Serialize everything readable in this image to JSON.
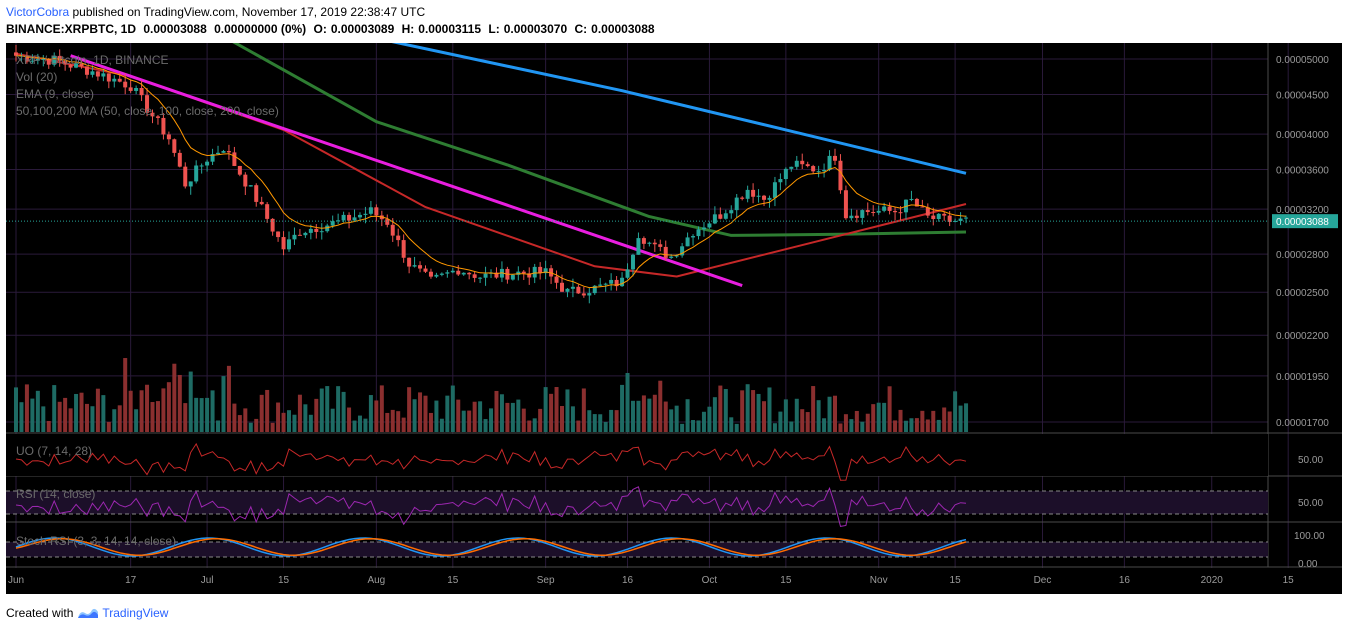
{
  "header": {
    "author": "VictorCobra",
    "published": "published on TradingView.com, November 17, 2019 22:38:47 UTC",
    "symbol": "BINANCE:XRPBTC, 1D",
    "last": "0.00003088",
    "change": "0.00000000 (0%)",
    "open_label": "O:",
    "open": "0.00003089",
    "high_label": "H:",
    "high": "0.00003115",
    "low_label": "L:",
    "low": "0.00003070",
    "close_label": "C:",
    "close": "0.00003088"
  },
  "legend": {
    "main": "XRP / Bitcoin, 1D, BINANCE",
    "vol": "Vol (20)",
    "ema": "EMA (9, close)",
    "ma": "50,100,200 MA (50, close, 100, close, 200, close)",
    "uo": "UO (7, 14, 28)",
    "rsi": "RSI (14, close)",
    "stoch": "Stoch RSI (3, 3, 14, 14, close)"
  },
  "price_axis": {
    "ticks": [
      "0.00005000",
      "0.00004500",
      "0.00004000",
      "0.00003600",
      "0.00003200",
      "0.00002800",
      "0.00002500",
      "0.00002200",
      "0.00001950",
      "0.00001700"
    ],
    "current_price": "0.00003088"
  },
  "oscillator_axes": {
    "uo_tick": "50.00",
    "rsi_tick": "50.00",
    "stoch_ticks": [
      "100.00",
      "0.00"
    ]
  },
  "time_axis": [
    "Jun",
    "17",
    "Jul",
    "15",
    "Aug",
    "15",
    "Sep",
    "16",
    "Oct",
    "15",
    "Nov",
    "15",
    "Dec",
    "16",
    "2020",
    "15"
  ],
  "footer": {
    "created_with": "Created with",
    "brand": "TradingView"
  },
  "colors": {
    "background": "#000000",
    "up_candle": "#26a69a",
    "down_candle": "#ef5350",
    "ema": "#ff9800",
    "ma50": "#c62828",
    "ma100": "#2e7d32",
    "ma200": "#2196f3",
    "trendline": "#e91ee0",
    "current_price_line": "#26a69a",
    "oscillator_line": "#c62828",
    "rsi_line": "#9c27b0",
    "stoch_k": "#2196f3",
    "stoch_d": "#ff6d00",
    "grid": "#2a1a3a"
  },
  "chart_data": {
    "type": "candlestick",
    "symbol": "XRP / Bitcoin",
    "interval": "1D",
    "log_scale": true,
    "grid": true,
    "keyframes_close": [
      {
        "date": "2019-05-27",
        "close": 5.05e-05
      },
      {
        "date": "2019-06-03",
        "close": 4.98e-05
      },
      {
        "date": "2019-06-10",
        "close": 4.82e-05
      },
      {
        "date": "2019-06-17",
        "close": 4.62e-05
      },
      {
        "date": "2019-06-24",
        "close": 3.95e-05
      },
      {
        "date": "2019-06-27",
        "close": 3.45e-05
      },
      {
        "date": "2019-07-01",
        "close": 3.72e-05
      },
      {
        "date": "2019-07-04",
        "close": 3.85e-05
      },
      {
        "date": "2019-07-10",
        "close": 3.3e-05
      },
      {
        "date": "2019-07-15",
        "close": 2.85e-05
      },
      {
        "date": "2019-07-18",
        "close": 3e-05
      },
      {
        "date": "2019-07-25",
        "close": 3.08e-05
      },
      {
        "date": "2019-07-31",
        "close": 3.18e-05
      },
      {
        "date": "2019-08-03",
        "close": 3.08e-05
      },
      {
        "date": "2019-08-07",
        "close": 2.72e-05
      },
      {
        "date": "2019-08-11",
        "close": 2.58e-05
      },
      {
        "date": "2019-08-16",
        "close": 2.68e-05
      },
      {
        "date": "2019-08-20",
        "close": 2.62e-05
      },
      {
        "date": "2019-08-27",
        "close": 2.65e-05
      },
      {
        "date": "2019-09-01",
        "close": 2.65e-05
      },
      {
        "date": "2019-09-05",
        "close": 2.5e-05
      },
      {
        "date": "2019-09-10",
        "close": 2.53e-05
      },
      {
        "date": "2019-09-15",
        "close": 2.58e-05
      },
      {
        "date": "2019-09-18",
        "close": 2.98e-05
      },
      {
        "date": "2019-09-21",
        "close": 2.85e-05
      },
      {
        "date": "2019-09-24",
        "close": 2.78e-05
      },
      {
        "date": "2019-09-28",
        "close": 3e-05
      },
      {
        "date": "2019-10-03",
        "close": 3.15e-05
      },
      {
        "date": "2019-10-08",
        "close": 3.4e-05
      },
      {
        "date": "2019-10-11",
        "close": 3.3e-05
      },
      {
        "date": "2019-10-16",
        "close": 3.65e-05
      },
      {
        "date": "2019-10-21",
        "close": 3.6e-05
      },
      {
        "date": "2019-10-24",
        "close": 3.75e-05
      },
      {
        "date": "2019-10-26",
        "close": 3.15e-05
      },
      {
        "date": "2019-10-29",
        "close": 3.18e-05
      },
      {
        "date": "2019-11-04",
        "close": 3.18e-05
      },
      {
        "date": "2019-11-07",
        "close": 3.28e-05
      },
      {
        "date": "2019-11-10",
        "close": 3.12e-05
      },
      {
        "date": "2019-11-14",
        "close": 3.09e-05
      },
      {
        "date": "2019-11-17",
        "close": 3.09e-05
      }
    ],
    "ma200": [
      {
        "date": "2019-08-02",
        "value": 5.3e-05
      },
      {
        "date": "2019-09-15",
        "value": 4.55e-05
      },
      {
        "date": "2019-10-15",
        "value": 4.05e-05
      },
      {
        "date": "2019-11-17",
        "value": 3.56e-05
      }
    ],
    "ma100": [
      {
        "date": "2019-07-05",
        "value": 5.3e-05
      },
      {
        "date": "2019-08-01",
        "value": 4.15e-05
      },
      {
        "date": "2019-08-25",
        "value": 3.65e-05
      },
      {
        "date": "2019-09-20",
        "value": 3.13e-05
      },
      {
        "date": "2019-10-05",
        "value": 2.96e-05
      },
      {
        "date": "2019-10-25",
        "value": 2.97e-05
      },
      {
        "date": "2019-11-17",
        "value": 2.99e-05
      }
    ],
    "ma50": [
      {
        "date": "2019-05-27",
        "value": 5.08e-05
      },
      {
        "date": "2019-06-17",
        "value": 4.75e-05
      },
      {
        "date": "2019-07-15",
        "value": 4.05e-05
      },
      {
        "date": "2019-08-10",
        "value": 3.22e-05
      },
      {
        "date": "2019-09-10",
        "value": 2.7e-05
      },
      {
        "date": "2019-09-25",
        "value": 2.62e-05
      },
      {
        "date": "2019-10-20",
        "value": 2.9e-05
      },
      {
        "date": "2019-11-17",
        "value": 3.25e-05
      }
    ],
    "trendline": [
      {
        "date": "2019-06-06",
        "value": 5.05e-05
      },
      {
        "date": "2019-10-07",
        "value": 2.55e-05
      }
    ],
    "current_price": 3.088e-05
  }
}
